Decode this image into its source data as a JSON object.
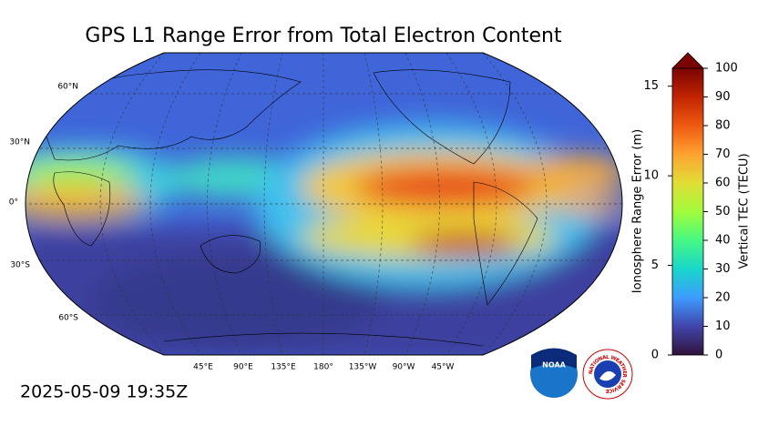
{
  "title": "GPS L1 Range Error from Total Electron Content",
  "timestamp": "2025-05-09 19:35Z",
  "map": {
    "lat_labels": [
      "60°N",
      "30°N",
      "0°",
      "30°S",
      "60°S"
    ],
    "lon_labels": [
      "45°E",
      "90°E",
      "135°E",
      "180°",
      "135°W",
      "90°W",
      "45°W"
    ]
  },
  "colorbar": {
    "tec_label": "Vertical TEC (TECU)",
    "tec_lim": [
      0,
      100
    ],
    "tec_ticks": [
      0,
      10,
      20,
      30,
      40,
      50,
      60,
      70,
      80,
      90,
      100
    ],
    "range_label": "Ionosphere Range Error (m)",
    "range_lim": [
      0,
      16
    ],
    "range_ticks": [
      0,
      5,
      10,
      15
    ]
  },
  "logos": {
    "noaa": "NOAA",
    "nws": "NATIONAL WEATHER SERVICE"
  }
}
